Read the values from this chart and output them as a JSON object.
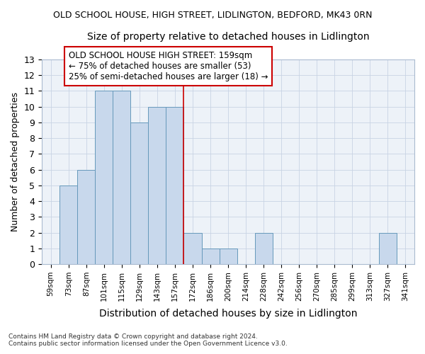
{
  "title1": "OLD SCHOOL HOUSE, HIGH STREET, LIDLINGTON, BEDFORD, MK43 0RN",
  "title2": "Size of property relative to detached houses in Lidlington",
  "xlabel": "Distribution of detached houses by size in Lidlington",
  "ylabel": "Number of detached properties",
  "categories": [
    "59sqm",
    "73sqm",
    "87sqm",
    "101sqm",
    "115sqm",
    "129sqm",
    "143sqm",
    "157sqm",
    "172sqm",
    "186sqm",
    "200sqm",
    "214sqm",
    "228sqm",
    "242sqm",
    "256sqm",
    "270sqm",
    "285sqm",
    "299sqm",
    "313sqm",
    "327sqm",
    "341sqm"
  ],
  "values": [
    0,
    5,
    6,
    11,
    11,
    9,
    10,
    10,
    2,
    1,
    1,
    0,
    2,
    0,
    0,
    0,
    0,
    0,
    0,
    2,
    0
  ],
  "bar_color": "#c8d8ec",
  "bar_edge_color": "#6699bb",
  "vline_color": "#cc0000",
  "annotation_line1": "OLD SCHOOL HOUSE HIGH STREET: 159sqm",
  "annotation_line2": "← 75% of detached houses are smaller (53)",
  "annotation_line3": "25% of semi-detached houses are larger (18) →",
  "annotation_box_color": "white",
  "annotation_box_edge_color": "#cc0000",
  "ylim": [
    0,
    13
  ],
  "yticks": [
    0,
    1,
    2,
    3,
    4,
    5,
    6,
    7,
    8,
    9,
    10,
    11,
    12,
    13
  ],
  "grid_color": "#c8d4e4",
  "bg_color": "#edf2f8",
  "footnote1": "Contains HM Land Registry data © Crown copyright and database right 2024.",
  "footnote2": "Contains public sector information licensed under the Open Government Licence v3.0."
}
